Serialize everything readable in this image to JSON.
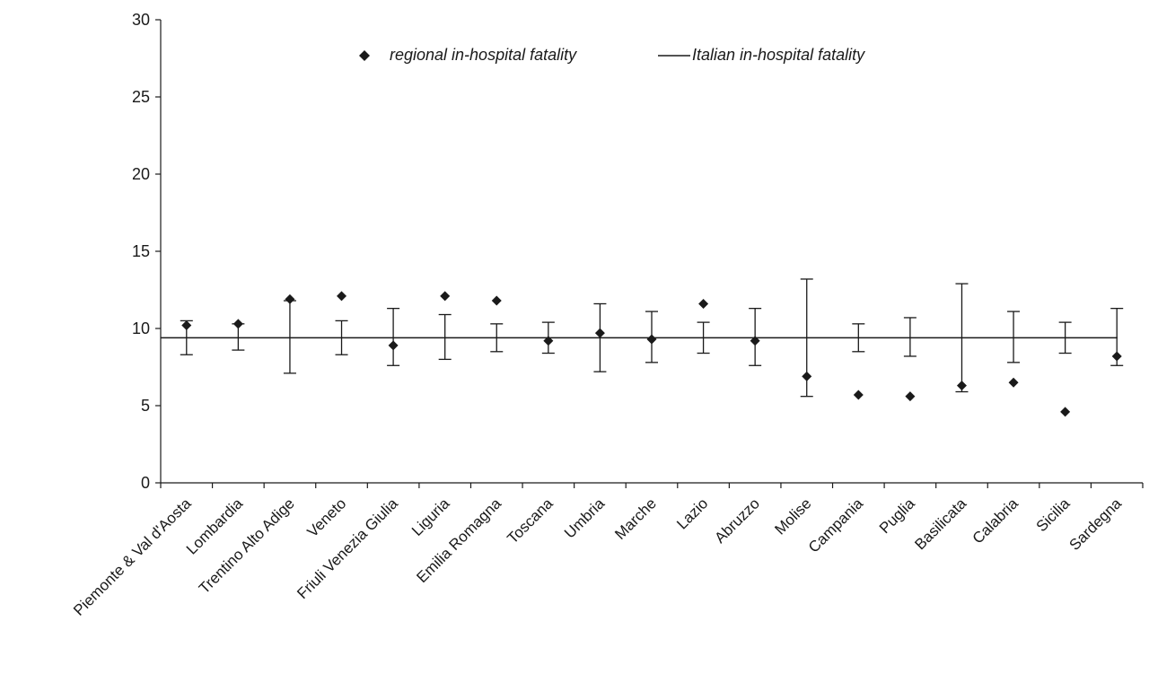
{
  "chart_data": {
    "type": "scatter",
    "title": "",
    "xlabel": "",
    "ylabel": "",
    "ylim": [
      0,
      30
    ],
    "yticks": [
      0,
      5,
      10,
      15,
      20,
      25,
      30
    ],
    "grid": false,
    "legend_position": "top-center",
    "categories": [
      "Piemonte & Val d'Aosta",
      "Lombardia",
      "Trentino Alto Adige",
      "Veneto",
      "Friuli Venezia Giulia",
      "Liguria",
      "Emilia Romagna",
      "Toscana",
      "Umbria",
      "Marche",
      "Lazio",
      "Abruzzo",
      "Molise",
      "Campania",
      "Puglia",
      "Basilicata",
      "Calabria",
      "Sicilia",
      "Sardegna"
    ],
    "series": [
      {
        "name": "regional in-hospital fatality",
        "marker": "diamond",
        "values": [
          10.2,
          10.3,
          11.9,
          12.1,
          8.9,
          12.1,
          11.8,
          9.2,
          9.7,
          9.3,
          11.6,
          9.2,
          6.9,
          5.7,
          5.6,
          6.3,
          6.5,
          4.6,
          8.2
        ]
      },
      {
        "name": "Italian in-hospital fatality",
        "marker": "line",
        "value": 9.4,
        "interval_lower": [
          8.3,
          8.6,
          7.1,
          8.3,
          7.6,
          8.0,
          8.5,
          8.4,
          7.2,
          7.8,
          8.4,
          7.6,
          5.6,
          8.5,
          8.2,
          5.9,
          7.8,
          8.4,
          7.6
        ],
        "interval_upper": [
          10.5,
          10.3,
          11.8,
          10.5,
          11.3,
          10.9,
          10.3,
          10.4,
          11.6,
          11.1,
          10.4,
          11.3,
          13.2,
          10.3,
          10.7,
          12.9,
          11.1,
          10.4,
          11.3
        ]
      }
    ]
  },
  "colors": {
    "ink": "#1a1a1a",
    "background": "#ffffff"
  }
}
